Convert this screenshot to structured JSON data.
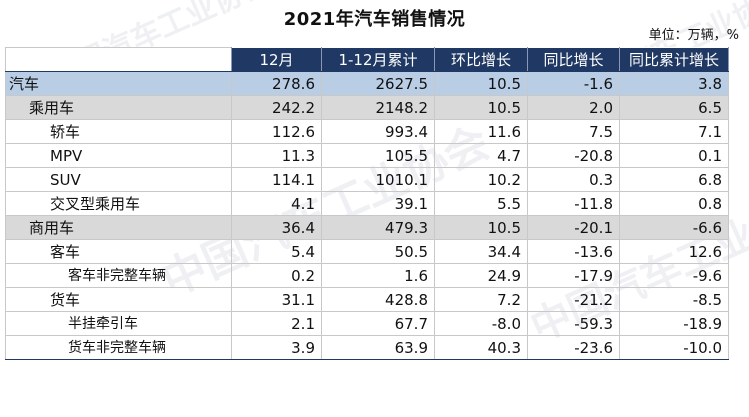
{
  "title": "2021年汽车销售情况",
  "unit": "单位：万辆，%",
  "watermark": "中国汽车工业协会",
  "columns": [
    "12月",
    "1-12月累计",
    "环比增长",
    "同比增长",
    "同比累计增长"
  ],
  "rows": [
    {
      "name": "汽车",
      "level": 0,
      "values": [
        "278.6",
        "2627.5",
        "10.5",
        "-1.6",
        "3.8"
      ]
    },
    {
      "name": "乘用车",
      "level": 1,
      "values": [
        "242.2",
        "2148.2",
        "10.5",
        "2.0",
        "6.5"
      ]
    },
    {
      "name": "轿车",
      "level": 2,
      "values": [
        "112.6",
        "993.4",
        "11.6",
        "7.5",
        "7.1"
      ]
    },
    {
      "name": "MPV",
      "level": 2,
      "values": [
        "11.3",
        "105.5",
        "4.7",
        "-20.8",
        "0.1"
      ]
    },
    {
      "name": "SUV",
      "level": 2,
      "values": [
        "114.1",
        "1010.1",
        "10.2",
        "0.3",
        "6.8"
      ]
    },
    {
      "name": "交叉型乘用车",
      "level": 2,
      "values": [
        "4.1",
        "39.1",
        "5.5",
        "-11.8",
        "0.8"
      ]
    },
    {
      "name": "商用车",
      "level": 1,
      "values": [
        "36.4",
        "479.3",
        "10.5",
        "-20.1",
        "-6.6"
      ]
    },
    {
      "name": "客车",
      "level": 2,
      "values": [
        "5.4",
        "50.5",
        "34.4",
        "-13.6",
        "12.6"
      ]
    },
    {
      "name": "客车非完整车辆",
      "level": 3,
      "values": [
        "0.2",
        "1.6",
        "24.9",
        "-17.9",
        "-9.6"
      ]
    },
    {
      "name": "货车",
      "level": 2,
      "values": [
        "31.1",
        "428.8",
        "7.2",
        "-21.2",
        "-8.5"
      ]
    },
    {
      "name": "半挂牵引车",
      "level": 3,
      "values": [
        "2.1",
        "67.7",
        "-8.0",
        "-59.3",
        "-18.9"
      ]
    },
    {
      "name": "货车非完整车辆",
      "level": 3,
      "values": [
        "3.9",
        "63.9",
        "40.3",
        "-23.6",
        "-10.0"
      ]
    }
  ],
  "colors": {
    "header_bg": "#1f3864",
    "total_row_bg": "#b9cde5",
    "category_row_bg": "#d9d9d9"
  }
}
